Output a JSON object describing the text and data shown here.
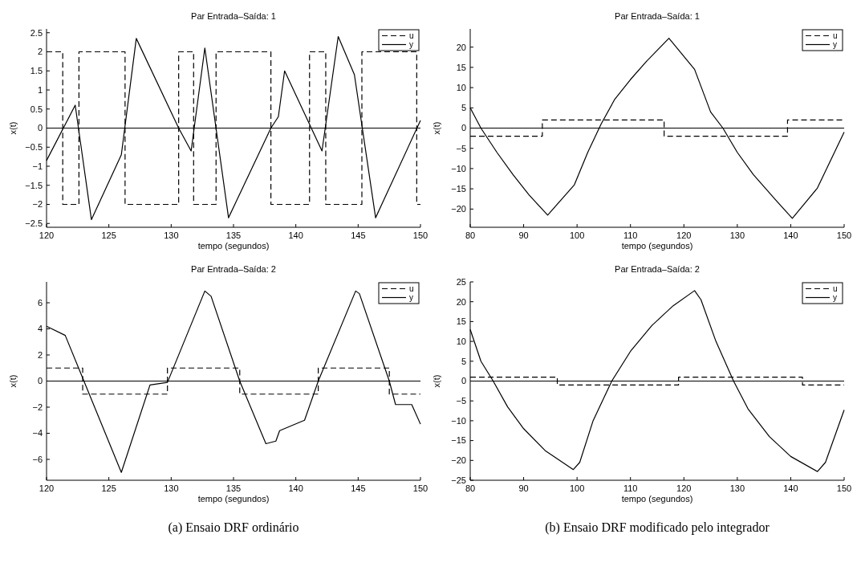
{
  "chart_data": [
    {
      "type": "line",
      "title": "Par Entrada–Saída: 1",
      "xlabel": "tempo (segundos)",
      "ylabel": "x(t)",
      "xlim": [
        120,
        150
      ],
      "xticks": [
        120,
        125,
        130,
        135,
        140,
        145,
        150
      ],
      "ylim": [
        -2.6,
        2.6
      ],
      "yticks": [
        -2.5,
        -2,
        -1.5,
        -1,
        -0.5,
        0,
        0.5,
        1,
        1.5,
        2,
        2.5
      ],
      "legend": "top right",
      "grid": false,
      "ref_lines": [
        {
          "axis": "y",
          "value": 0,
          "color": "#000000"
        }
      ],
      "series": [
        {
          "name": "u",
          "type": "step",
          "line_style": "dashed",
          "color": "#000000",
          "x": [
            120,
            121.3,
            122.6,
            126.3,
            130.6,
            131.8,
            133.6,
            138,
            141.1,
            142.4,
            145.3,
            149.7,
            150
          ],
          "values": [
            2,
            -2,
            2,
            -2,
            2,
            -2,
            2,
            -2,
            2,
            -2,
            2,
            -2,
            -2
          ]
        },
        {
          "name": "y",
          "type": "line",
          "line_style": "solid",
          "color": "#000000",
          "x": [
            120,
            122.3,
            123.6,
            126,
            127.2,
            130.6,
            131.6,
            132.7,
            134.6,
            138,
            138.6,
            139.1,
            142.1,
            143.4,
            144.7,
            146.4,
            150
          ],
          "values": [
            -0.85,
            0.6,
            -2.4,
            -0.7,
            2.35,
            0,
            -0.6,
            2.1,
            -2.35,
            0,
            0.3,
            1.5,
            -0.6,
            2.4,
            1.4,
            -2.35,
            0.2
          ]
        }
      ]
    },
    {
      "type": "line",
      "title": "Par Entrada–Saída: 1",
      "xlabel": "tempo (segundos)",
      "ylabel": "x(t)",
      "xlim": [
        80,
        150
      ],
      "xticks": [
        80,
        90,
        100,
        110,
        120,
        130,
        140,
        150
      ],
      "ylim": [
        -24.5,
        24.5
      ],
      "yticks": [
        -20,
        -15,
        -10,
        -5,
        0,
        5,
        10,
        15,
        20
      ],
      "legend": "top right",
      "grid": false,
      "ref_lines": [
        {
          "axis": "y",
          "value": 0,
          "color": "#000000"
        }
      ],
      "series": [
        {
          "name": "u",
          "type": "step",
          "line_style": "dashed",
          "color": "#000000",
          "x": [
            80,
            93.5,
            116.3,
            139.4,
            150
          ],
          "values": [
            -2,
            2,
            -2,
            2,
            2
          ]
        },
        {
          "name": "y",
          "type": "line",
          "line_style": "solid",
          "color": "#000000",
          "x": [
            80,
            82,
            85,
            88,
            91,
            94.5,
            99.5,
            102,
            104.5,
            107,
            110,
            113,
            117.2,
            122,
            125,
            127.3,
            130,
            133,
            137,
            140.3,
            145,
            150
          ],
          "values": [
            5,
            0,
            -6,
            -11.5,
            -16.5,
            -21.5,
            -14,
            -6,
            1,
            7,
            12,
            16.5,
            22.2,
            14.5,
            4,
            0,
            -6,
            -11.5,
            -17.5,
            -22.3,
            -14.8,
            -1
          ]
        }
      ]
    },
    {
      "type": "line",
      "title": "Par Entrada–Saída: 2",
      "xlabel": "tempo (segundos)",
      "ylabel": "x(t)",
      "xlim": [
        120,
        150
      ],
      "xticks": [
        120,
        125,
        130,
        135,
        140,
        145,
        150
      ],
      "ylim": [
        -7.6,
        7.6
      ],
      "yticks": [
        -6,
        -4,
        -2,
        0,
        2,
        4,
        6
      ],
      "legend": "top right",
      "grid": false,
      "ref_lines": [
        {
          "axis": "y",
          "value": 0,
          "color": "#000000"
        }
      ],
      "annotations": [
        "(a) Ensaio DRF ordinário"
      ],
      "series": [
        {
          "name": "u",
          "type": "step",
          "line_style": "dashed",
          "color": "#000000",
          "x": [
            120,
            122.9,
            129.7,
            135.5,
            141.8,
            147.5,
            150
          ],
          "values": [
            1,
            -1,
            1,
            -1,
            1,
            -1,
            -1
          ]
        },
        {
          "name": "y",
          "type": "line",
          "line_style": "solid",
          "color": "#000000",
          "x": [
            120,
            121.5,
            123,
            126,
            128.3,
            129.7,
            132.7,
            133.2,
            135.5,
            137.6,
            138.4,
            138.7,
            140.7,
            141.8,
            144.8,
            145.1,
            147.5,
            148,
            149.3,
            150
          ],
          "values": [
            4.2,
            3.5,
            0,
            -7,
            -0.3,
            -0.1,
            6.9,
            6.5,
            0,
            -4.8,
            -4.6,
            -3.8,
            -3,
            0,
            6.9,
            6.7,
            0,
            -1.8,
            -1.8,
            -3.3
          ]
        }
      ]
    },
    {
      "type": "line",
      "title": "Par Entrada–Saída: 2",
      "xlabel": "tempo (segundos)",
      "ylabel": "x(t)",
      "xlim": [
        80,
        150
      ],
      "xticks": [
        80,
        90,
        100,
        110,
        120,
        130,
        140,
        150
      ],
      "ylim": [
        -25,
        25
      ],
      "yticks": [
        -25,
        -20,
        -15,
        -10,
        -5,
        0,
        5,
        10,
        15,
        20,
        25
      ],
      "legend": "top right",
      "grid": false,
      "ref_lines": [
        {
          "axis": "y",
          "value": 0,
          "color": "#000000"
        }
      ],
      "annotations": [
        "(b) Ensaio DRF modificado pelo integrador"
      ],
      "series": [
        {
          "name": "u",
          "type": "step",
          "line_style": "dashed",
          "color": "#000000",
          "x": [
            80,
            96.3,
            119,
            142.2,
            150
          ],
          "values": [
            1,
            -1,
            1,
            -1,
            -1
          ]
        },
        {
          "name": "y",
          "type": "line",
          "line_style": "solid",
          "color": "#000000",
          "x": [
            80,
            82,
            84.3,
            87,
            90,
            94,
            99.3,
            100.5,
            103,
            106.5,
            110,
            114,
            118,
            122,
            123.2,
            126,
            129.3,
            132,
            136,
            140,
            145,
            146.5,
            150
          ],
          "values": [
            13,
            5,
            0,
            -6.5,
            -12,
            -17.5,
            -22.3,
            -20.5,
            -10,
            0,
            7.5,
            14,
            19,
            22.8,
            20.5,
            10,
            0,
            -7,
            -14,
            -19,
            -22.8,
            -20.5,
            -7.3
          ]
        }
      ]
    }
  ]
}
